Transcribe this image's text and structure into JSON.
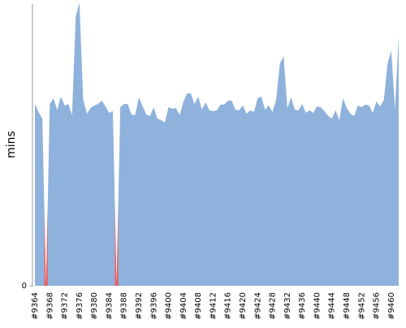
{
  "chart_data": {
    "type": "area",
    "y_label": "mins",
    "categories": [
      "#9364",
      null,
      null,
      null,
      "#9368",
      null,
      null,
      null,
      "#9372",
      null,
      null,
      null,
      "#9376",
      null,
      null,
      null,
      "#9380",
      null,
      null,
      null,
      "#9384",
      null,
      null,
      null,
      "#9388",
      null,
      null,
      null,
      "#9392",
      null,
      null,
      null,
      "#9396",
      null,
      null,
      null,
      "#9400",
      null,
      null,
      null,
      "#9404",
      null,
      null,
      null,
      "#9408",
      null,
      null,
      null,
      "#9412",
      null,
      null,
      null,
      "#9416",
      null,
      null,
      null,
      "#9420",
      null,
      null,
      null,
      "#9424",
      null,
      null,
      null,
      "#9428",
      null,
      null,
      null,
      "#9432",
      null,
      null,
      null,
      "#9436",
      null,
      null,
      null,
      "#9440",
      null,
      null,
      null,
      "#9444",
      null,
      null,
      null,
      "#9448",
      null,
      null,
      null,
      "#9452",
      null,
      null,
      null,
      "#9456",
      null,
      null,
      null,
      "#9460",
      null,
      null
    ],
    "values": [
      63.6,
      60.8,
      58.5,
      0,
      63.6,
      65.6,
      61.6,
      66.2,
      63.1,
      63.6,
      59.7,
      94.3,
      99.1,
      65.3,
      60.2,
      62.2,
      63.1,
      63.6,
      64.8,
      62.8,
      60.5,
      61.1,
      0,
      62.5,
      63.6,
      63.6,
      59.9,
      59.7,
      65.9,
      62.8,
      59.9,
      59.4,
      62.5,
      58.5,
      58.0,
      57.1,
      62.5,
      61.9,
      62.2,
      59.7,
      64.5,
      67.3,
      67.3,
      63.6,
      66.2,
      61.6,
      64.2,
      61.4,
      61.1,
      61.4,
      63.4,
      63.4,
      64.8,
      64.8,
      61.6,
      61.4,
      63.1,
      60.2,
      61.4,
      60.8,
      65.6,
      66.2,
      61.6,
      63.1,
      60.8,
      65.3,
      77.8,
      80.4,
      62.2,
      65.9,
      61.6,
      61.4,
      63.6,
      60.5,
      61.4,
      60.5,
      62.8,
      62.5,
      61.1,
      59.4,
      58.5,
      61.4,
      58.0,
      65.6,
      62.2,
      60.2,
      59.4,
      63.1,
      62.5,
      63.4,
      63.1,
      60.5,
      64.5,
      62.8,
      65.0,
      77.8,
      82.4,
      61.9,
      87.5
    ],
    "color": "#8fb2dc",
    "failed_color": "#f25a5a",
    "ylim": [
      0,
      100
    ],
    "yticks": [
      0
    ]
  }
}
